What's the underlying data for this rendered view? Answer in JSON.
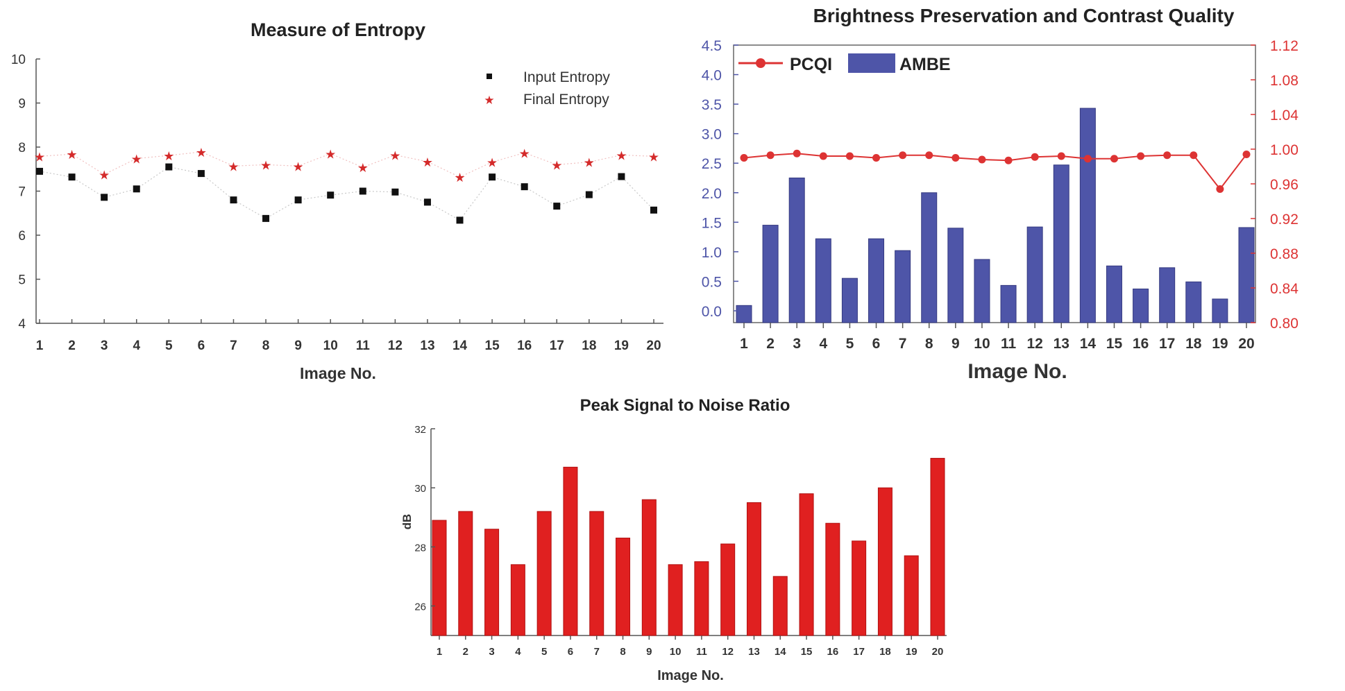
{
  "chart_data": [
    {
      "type": "scatter",
      "title": "Measure of Entropy",
      "xlabel": "Image No.",
      "ylabel": "",
      "categories": [
        "1",
        "2",
        "3",
        "4",
        "5",
        "6",
        "7",
        "8",
        "9",
        "10",
        "11",
        "12",
        "13",
        "14",
        "15",
        "16",
        "17",
        "18",
        "19",
        "20"
      ],
      "ylim": [
        4,
        10
      ],
      "yticks": [
        "4",
        "5",
        "6",
        "7",
        "8",
        "9",
        "10"
      ],
      "legend_position": "top-right",
      "series": [
        {
          "name": "Input Entropy",
          "color": "#111111",
          "values": [
            7.45,
            7.32,
            6.86,
            7.05,
            7.55,
            7.4,
            6.8,
            6.38,
            6.8,
            6.91,
            7.0,
            6.98,
            6.75,
            6.34,
            7.32,
            7.1,
            6.66,
            6.92,
            7.33,
            6.57
          ]
        },
        {
          "name": "Final Entropy",
          "color": "#d42a2a",
          "values": [
            7.79,
            7.84,
            7.38,
            7.74,
            7.81,
            7.89,
            7.57,
            7.6,
            7.57,
            7.85,
            7.54,
            7.82,
            7.67,
            7.32,
            7.66,
            7.87,
            7.6,
            7.66,
            7.82,
            7.79
          ]
        }
      ]
    },
    {
      "type": "bar",
      "title": "Brightness Preservation and Contrast Quality",
      "xlabel": "Image No.",
      "categories": [
        "1",
        "2",
        "3",
        "4",
        "5",
        "6",
        "7",
        "8",
        "9",
        "10",
        "11",
        "12",
        "13",
        "14",
        "15",
        "16",
        "17",
        "18",
        "19",
        "20"
      ],
      "ylim": [
        -0.2,
        4.5
      ],
      "yticks": [
        "0.0",
        "0.5",
        "1.0",
        "1.5",
        "2.0",
        "2.5",
        "3.0",
        "3.5",
        "4.0",
        "4.5"
      ],
      "y2lim": [
        0.8,
        1.12
      ],
      "y2ticks": [
        "0.80",
        "0.84",
        "0.88",
        "0.92",
        "0.96",
        "1.00",
        "1.04",
        "1.08",
        "1.12"
      ],
      "legend_position": "top-left",
      "bar_series": {
        "name": "AMBE",
        "color": "#4e55a8",
        "values": [
          0.09,
          1.45,
          2.25,
          1.22,
          0.55,
          1.22,
          1.02,
          2.0,
          1.4,
          0.87,
          0.43,
          1.42,
          2.47,
          3.43,
          0.76,
          0.37,
          0.73,
          0.49,
          0.2,
          1.41
        ]
      },
      "line_series": {
        "name": "PCQI",
        "color": "#dd3333",
        "values": [
          0.99,
          0.993,
          0.995,
          0.992,
          0.992,
          0.99,
          0.993,
          0.993,
          0.99,
          0.988,
          0.987,
          0.991,
          0.992,
          0.989,
          0.989,
          0.992,
          0.993,
          0.993,
          0.954,
          0.994
        ]
      }
    },
    {
      "type": "bar",
      "title": "Peak Signal to Noise Ratio",
      "xlabel": "Image No.",
      "ylabel": "dB",
      "categories": [
        "1",
        "2",
        "3",
        "4",
        "5",
        "6",
        "7",
        "8",
        "9",
        "10",
        "11",
        "12",
        "13",
        "14",
        "15",
        "16",
        "17",
        "18",
        "19",
        "20"
      ],
      "ylim": [
        25,
        32
      ],
      "yticks": [
        "26",
        "28",
        "30",
        "32"
      ],
      "color": "#e02020",
      "values": [
        28.9,
        29.2,
        28.6,
        27.4,
        29.2,
        30.7,
        29.2,
        28.3,
        29.6,
        27.4,
        27.5,
        28.1,
        29.5,
        27.0,
        29.8,
        28.8,
        28.2,
        30.0,
        27.7,
        31.0
      ]
    }
  ]
}
